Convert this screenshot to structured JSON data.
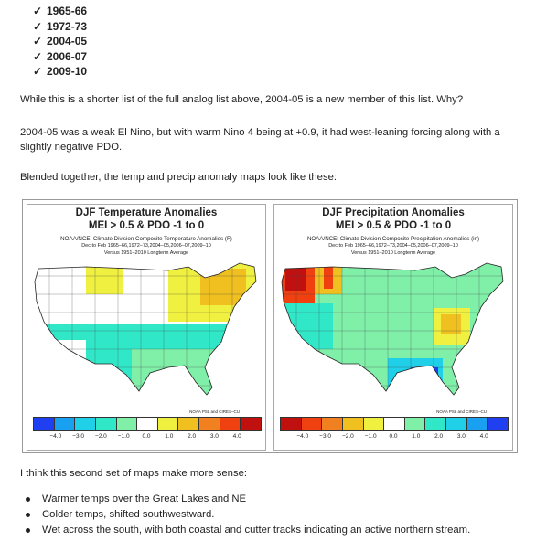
{
  "seasons": [
    "1965-66",
    "1972-73",
    "2004-05",
    "2006-07",
    "2009-10"
  ],
  "paragraphs": {
    "p1": "While this is a shorter list of the full analog list above, 2004-05 is a new member of this list. Why?",
    "p2": "2004-05 was a weak El Nino, but with warm Nino 4 being at +0.9, it had west-leaning forcing along with a slightly negative PDO.",
    "p3": "Blended together, the temp and precip anomaly maps look like these:",
    "p4": "I think this second set of maps make more sense:"
  },
  "maps": {
    "temp": {
      "title": "DJF Temperature Anomalies",
      "subtitle": "MEI > 0.5 & PDO -1 to 0",
      "line1": "NOAA/NCEI Climate Division Composite Temperature Anomalies (F)",
      "line2": "Dec to Feb  1965–66,1972–73,2004–05,2006–07,2009–10",
      "line3": "Versus 1951–2010 Longterm Average",
      "credit": "NOAA PSL and CIRES–CU",
      "colors": [
        "#1f3ff0",
        "#1aa0f0",
        "#1fd0e8",
        "#30e8c8",
        "#80f0a8",
        "#ffffff",
        "#f0f040",
        "#f0c020",
        "#f08020",
        "#f04010",
        "#c01010"
      ],
      "ticks": [
        "−4.0",
        "−3.0",
        "−2.0",
        "−1.0",
        "0.0",
        "1.0",
        "2.0",
        "3.0",
        "4.0"
      ]
    },
    "precip": {
      "title": "DJF Precipitation Anomalies",
      "subtitle": "MEI > 0.5 & PDO -1 to 0",
      "line1": "NOAA/NCEI Climate Division Composite Precipitation Anomalies (in)",
      "line2": "Dec to Feb  1965–66,1972–73,2004–05,2006–07,2009–10",
      "line3": "Versus 1951–2010 Longterm Average",
      "credit": "NOAA PSL and CIRES–CU",
      "colors": [
        "#c01010",
        "#f04010",
        "#f08020",
        "#f0c020",
        "#f0f040",
        "#ffffff",
        "#80f0a8",
        "#30e8c8",
        "#1fd0e8",
        "#1aa0f0",
        "#1f3ff0"
      ],
      "ticks": [
        "−4.0",
        "−3.0",
        "−2.0",
        "−1.0",
        "0.0",
        "1.0",
        "2.0",
        "3.0",
        "4.0"
      ]
    }
  },
  "bullets": [
    "Warmer temps over the Great Lakes and NE",
    "Colder temps, shifted southwestward.",
    "Wet across the south, with both coastal and cutter tracks indicating an active northern stream."
  ]
}
